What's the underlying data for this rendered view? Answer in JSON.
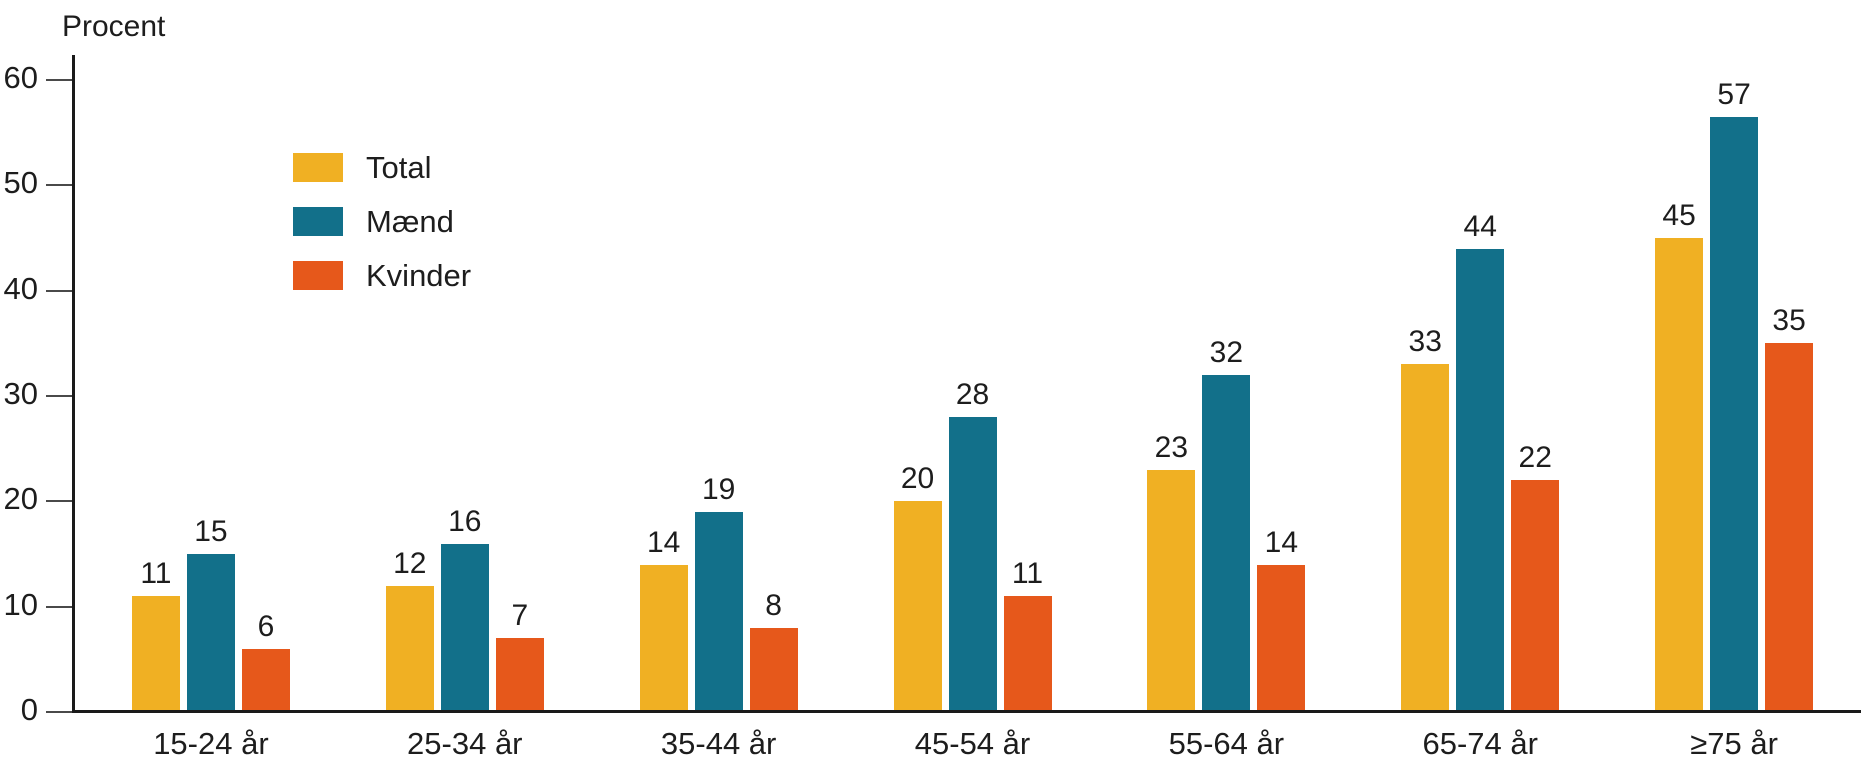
{
  "chart_data": {
    "type": "bar",
    "title": "",
    "ylabel": "Procent",
    "xlabel": "",
    "ylim": [
      0,
      60
    ],
    "yticks": [
      0,
      10,
      20,
      30,
      40,
      50,
      60
    ],
    "grid": false,
    "legend_position": "upper-left-inside",
    "bar_value_labels": true,
    "categories": [
      "15-24 år",
      "25-34 år",
      "35-44 år",
      "45-54 år",
      "55-64 år",
      "65-74 år",
      "≥75 år"
    ],
    "series": [
      {
        "name": "Total",
        "color": "#F0B023",
        "values": [
          11,
          12,
          14,
          20,
          23,
          33,
          45
        ]
      },
      {
        "name": "Mænd",
        "color": "#12708A",
        "values": [
          15,
          16,
          19,
          28,
          32,
          44,
          57
        ]
      },
      {
        "name": "Kvinder",
        "color": "#E6581B",
        "values": [
          6,
          7,
          8,
          11,
          14,
          22,
          35
        ]
      }
    ]
  },
  "colors": {
    "background": "#ffffff",
    "axis": "#1a1a1a",
    "tick": "#4a4a4a",
    "text": "#1d1d1d"
  }
}
